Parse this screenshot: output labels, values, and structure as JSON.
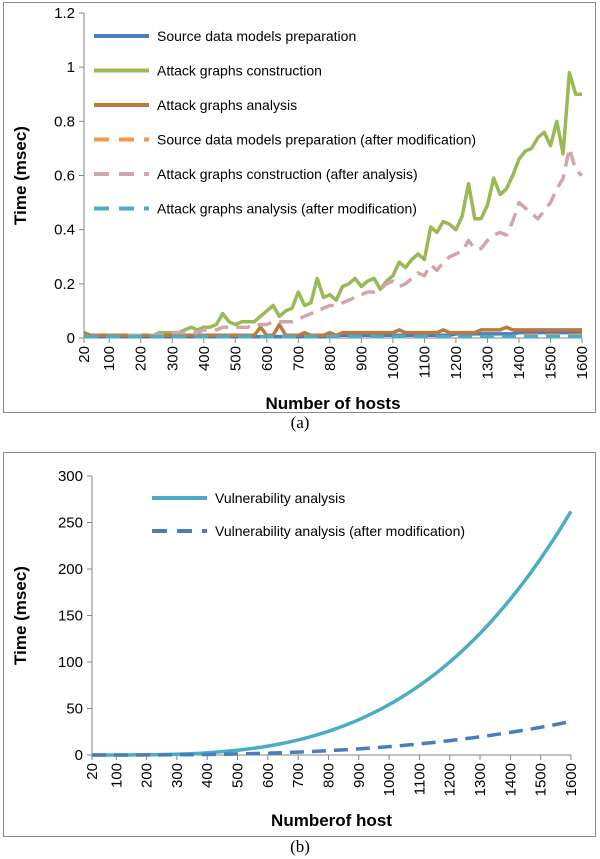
{
  "chart_data": [
    {
      "type": "line",
      "x": [
        20,
        40,
        60,
        80,
        100,
        120,
        140,
        160,
        180,
        200,
        220,
        240,
        260,
        280,
        300,
        320,
        340,
        360,
        380,
        400,
        420,
        440,
        460,
        480,
        500,
        520,
        540,
        560,
        580,
        600,
        620,
        640,
        660,
        680,
        700,
        720,
        740,
        760,
        780,
        800,
        820,
        840,
        860,
        880,
        900,
        920,
        940,
        960,
        980,
        1000,
        1020,
        1040,
        1060,
        1080,
        1100,
        1120,
        1140,
        1160,
        1180,
        1200,
        1220,
        1240,
        1260,
        1280,
        1300,
        1320,
        1340,
        1360,
        1380,
        1400,
        1420,
        1440,
        1460,
        1480,
        1500,
        1520,
        1540,
        1560,
        1580,
        1600
      ],
      "xticks": [
        "20",
        "100",
        "200",
        "300",
        "400",
        "500",
        "600",
        "700",
        "800",
        "900",
        "1000",
        "1100",
        "1200",
        "1300",
        "1400",
        "1500",
        "1600"
      ],
      "xtick_values": [
        20,
        100,
        200,
        300,
        400,
        500,
        600,
        700,
        800,
        900,
        1000,
        1100,
        1200,
        1300,
        1400,
        1500,
        1600
      ],
      "yticks": [
        "0",
        "0.2",
        "0.4",
        "0.6",
        "0.8",
        "1",
        "1.2"
      ],
      "ylim": [
        0,
        1.2
      ],
      "xlabel": "Number of hosts",
      "ylabel": "Time (msec)",
      "series": [
        {
          "name": "Source data models preparation",
          "color": "#4a7ebb",
          "dash": "solid",
          "values": [
            0.01,
            0.005,
            0.005,
            0.005,
            0.005,
            0.005,
            0.005,
            0.005,
            0.005,
            0.005,
            0.005,
            0.005,
            0.005,
            0.005,
            0.005,
            0.005,
            0.005,
            0.005,
            0.005,
            0.005,
            0.005,
            0.005,
            0.005,
            0.005,
            0.005,
            0.005,
            0.005,
            0.005,
            0.005,
            0.005,
            0.005,
            0.005,
            0.005,
            0.005,
            0.005,
            0.005,
            0.005,
            0.005,
            0.005,
            0.01,
            0.01,
            0.01,
            0.01,
            0.01,
            0.01,
            0.01,
            0.01,
            0.01,
            0.01,
            0.01,
            0.01,
            0.01,
            0.01,
            0.01,
            0.01,
            0.01,
            0.01,
            0.01,
            0.01,
            0.015,
            0.015,
            0.015,
            0.015,
            0.015,
            0.015,
            0.015,
            0.015,
            0.015,
            0.015,
            0.02,
            0.02,
            0.02,
            0.02,
            0.02,
            0.02,
            0.02,
            0.02,
            0.02,
            0.02,
            0.02
          ]
        },
        {
          "name": "Attack graphs construction",
          "color": "#98b954",
          "dash": "solid",
          "values": [
            0.01,
            0.01,
            0.01,
            0.01,
            0.01,
            0.01,
            0.01,
            0.01,
            0.01,
            0.01,
            0.01,
            0.01,
            0.02,
            0.02,
            0.02,
            0.02,
            0.03,
            0.04,
            0.03,
            0.04,
            0.04,
            0.05,
            0.09,
            0.06,
            0.05,
            0.06,
            0.06,
            0.06,
            0.08,
            0.1,
            0.12,
            0.08,
            0.1,
            0.11,
            0.17,
            0.12,
            0.13,
            0.22,
            0.15,
            0.16,
            0.14,
            0.19,
            0.2,
            0.22,
            0.19,
            0.21,
            0.22,
            0.18,
            0.21,
            0.23,
            0.28,
            0.26,
            0.29,
            0.31,
            0.29,
            0.41,
            0.39,
            0.43,
            0.42,
            0.4,
            0.45,
            0.57,
            0.44,
            0.44,
            0.49,
            0.59,
            0.53,
            0.55,
            0.6,
            0.66,
            0.69,
            0.7,
            0.74,
            0.76,
            0.71,
            0.8,
            0.68,
            0.98,
            0.9,
            0.9
          ]
        },
        {
          "name": "Attack graphs analysis",
          "color": "#be7a3c",
          "dash": "solid",
          "values": [
            0.02,
            0.01,
            0.01,
            0.01,
            0.01,
            0.01,
            0.01,
            0.01,
            0.01,
            0.01,
            0.01,
            0.01,
            0.01,
            0.01,
            0.01,
            0.01,
            0.01,
            0.01,
            0.01,
            0.01,
            0.01,
            0.01,
            0.01,
            0.01,
            0.01,
            0.01,
            0.01,
            0.01,
            0.04,
            0.01,
            0.01,
            0.05,
            0.01,
            0.01,
            0.01,
            0.02,
            0.01,
            0.01,
            0.01,
            0.02,
            0.01,
            0.02,
            0.02,
            0.02,
            0.02,
            0.02,
            0.02,
            0.02,
            0.02,
            0.02,
            0.03,
            0.02,
            0.02,
            0.02,
            0.02,
            0.02,
            0.02,
            0.03,
            0.02,
            0.02,
            0.02,
            0.02,
            0.02,
            0.03,
            0.03,
            0.03,
            0.03,
            0.04,
            0.03,
            0.03,
            0.03,
            0.03,
            0.03,
            0.03,
            0.03,
            0.03,
            0.03,
            0.03,
            0.03,
            0.03
          ]
        },
        {
          "name": "Source data models preparation (after modification)",
          "color": "#f79646",
          "dash": "dashed",
          "values": [
            0.005,
            0.005,
            0.005,
            0.005,
            0.005,
            0.005,
            0.005,
            0.005,
            0.005,
            0.005,
            0.005,
            0.005,
            0.005,
            0.005,
            0.005,
            0.005,
            0.005,
            0.005,
            0.005,
            0.005,
            0.005,
            0.005,
            0.005,
            0.005,
            0.005,
            0.005,
            0.005,
            0.005,
            0.005,
            0.005,
            0.005,
            0.005,
            0.005,
            0.005,
            0.005,
            0.005,
            0.005,
            0.005,
            0.005,
            0.005,
            0.005,
            0.005,
            0.005,
            0.005,
            0.005,
            0.005,
            0.005,
            0.005,
            0.005,
            0.005,
            0.005,
            0.005,
            0.005,
            0.005,
            0.005,
            0.005,
            0.005,
            0.005,
            0.005,
            0.005,
            0.005,
            0.005,
            0.005,
            0.005,
            0.005,
            0.005,
            0.005,
            0.005,
            0.005,
            0.01,
            0.01,
            0.01,
            0.01,
            0.01,
            0.01,
            0.01,
            0.01,
            0.01,
            0.01,
            0.01
          ]
        },
        {
          "name": "Attack graphs construction (after analysis)",
          "color": "#d4a5a8",
          "dash": "dashed",
          "values": [
            0.005,
            0.005,
            0.005,
            0.005,
            0.005,
            0.005,
            0.005,
            0.01,
            0.01,
            0.01,
            0.01,
            0.01,
            0.01,
            0.01,
            0.02,
            0.02,
            0.02,
            0.02,
            0.02,
            0.03,
            0.03,
            0.03,
            0.04,
            0.04,
            0.04,
            0.04,
            0.04,
            0.05,
            0.05,
            0.05,
            0.06,
            0.06,
            0.06,
            0.06,
            0.07,
            0.08,
            0.09,
            0.1,
            0.11,
            0.12,
            0.12,
            0.13,
            0.14,
            0.15,
            0.16,
            0.17,
            0.17,
            0.18,
            0.2,
            0.21,
            0.19,
            0.2,
            0.22,
            0.24,
            0.23,
            0.27,
            0.25,
            0.28,
            0.3,
            0.31,
            0.32,
            0.36,
            0.33,
            0.33,
            0.36,
            0.38,
            0.39,
            0.38,
            0.43,
            0.5,
            0.48,
            0.46,
            0.44,
            0.47,
            0.5,
            0.55,
            0.59,
            0.7,
            0.62,
            0.6
          ]
        },
        {
          "name": "Attack graphs analysis (after modification)",
          "color": "#4bacc6",
          "dash": "dashed",
          "values": [
            0.005,
            0.005,
            0.005,
            0.005,
            0.005,
            0.005,
            0.005,
            0.005,
            0.005,
            0.005,
            0.005,
            0.005,
            0.005,
            0.005,
            0.005,
            0.005,
            0.005,
            0.005,
            0.005,
            0.005,
            0.005,
            0.005,
            0.005,
            0.005,
            0.005,
            0.005,
            0.005,
            0.005,
            0.005,
            0.005,
            0.005,
            0.005,
            0.005,
            0.005,
            0.005,
            0.005,
            0.005,
            0.005,
            0.005,
            0.005,
            0.005,
            0.005,
            0.005,
            0.005,
            0.005,
            0.005,
            0.005,
            0.005,
            0.005,
            0.005,
            0.005,
            0.005,
            0.005,
            0.005,
            0.005,
            0.005,
            0.005,
            0.005,
            0.005,
            0.005,
            0.005,
            0.005,
            0.005,
            0.005,
            0.005,
            0.005,
            0.005,
            0.005,
            0.005,
            0.005,
            0.005,
            0.005,
            0.005,
            0.005,
            0.005,
            0.005,
            0.005,
            0.005,
            0.005,
            0.005
          ]
        }
      ],
      "legend_position": "top-left",
      "grid": false,
      "caption": "(a)"
    },
    {
      "type": "line",
      "x": [
        20,
        40,
        60,
        80,
        100,
        120,
        140,
        160,
        180,
        200,
        220,
        240,
        260,
        280,
        300,
        320,
        340,
        360,
        380,
        400,
        420,
        440,
        460,
        480,
        500,
        520,
        540,
        560,
        580,
        600,
        620,
        640,
        660,
        680,
        700,
        720,
        740,
        760,
        780,
        800,
        820,
        840,
        860,
        880,
        900,
        920,
        940,
        960,
        980,
        1000,
        1020,
        1040,
        1060,
        1080,
        1100,
        1120,
        1140,
        1160,
        1180,
        1200,
        1220,
        1240,
        1260,
        1280,
        1300,
        1320,
        1340,
        1360,
        1380,
        1400,
        1420,
        1440,
        1460,
        1480,
        1500,
        1520,
        1540,
        1560,
        1580,
        1600
      ],
      "xticks": [
        "20",
        "100",
        "200",
        "300",
        "400",
        "500",
        "600",
        "700",
        "800",
        "900",
        "1000",
        "1100",
        "1200",
        "1300",
        "1400",
        "1500",
        "1600"
      ],
      "xtick_values": [
        20,
        100,
        200,
        300,
        400,
        500,
        600,
        700,
        800,
        900,
        1000,
        1100,
        1200,
        1300,
        1400,
        1500,
        1600
      ],
      "yticks": [
        "0",
        "50",
        "100",
        "150",
        "200",
        "250",
        "300"
      ],
      "ylim": [
        0,
        300
      ],
      "xlabel": "Numberof host",
      "ylabel": "Time (msec)",
      "series": [
        {
          "name": "Vulnerability analysis",
          "color": "#4bacc6",
          "dash": "solid",
          "exponent": 3.3,
          "end_value": 262
        },
        {
          "name": "Vulnerability analysis (after modification)",
          "color": "#4a7ebb",
          "dash": "dashed",
          "exponent": 2.9,
          "end_value": 36
        }
      ],
      "legend_position": "top-center",
      "grid": false,
      "caption": "(b)"
    }
  ]
}
